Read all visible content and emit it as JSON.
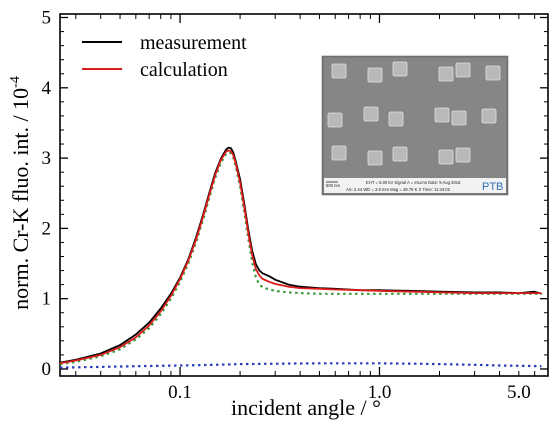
{
  "chart_data": {
    "type": "line",
    "title": "",
    "xlabel": "incident angle / °",
    "ylabel_main": "norm. Cr-K fluo. int. / 10",
    "ylabel_exp": "-4",
    "xscale": "log",
    "xlim": [
      0.025,
      7.0
    ],
    "ylim": [
      -0.1,
      5.05
    ],
    "xticks": [
      {
        "value": 0.1,
        "label": "0.1"
      },
      {
        "value": 1.0,
        "label": "1.0"
      },
      {
        "value": 5.0,
        "label": "5.0"
      }
    ],
    "yticks": [
      {
        "value": 0,
        "label": "0"
      },
      {
        "value": 1,
        "label": "1"
      },
      {
        "value": 2,
        "label": "2"
      },
      {
        "value": 3,
        "label": "3"
      },
      {
        "value": 4,
        "label": "4"
      },
      {
        "value": 5,
        "label": "5"
      }
    ],
    "legend_position": "top-left",
    "grid": false,
    "series": [
      {
        "name": "measurement",
        "color": "#000000",
        "style": "solid",
        "x": [
          0.025,
          0.03,
          0.04,
          0.05,
          0.06,
          0.07,
          0.08,
          0.09,
          0.1,
          0.11,
          0.12,
          0.13,
          0.14,
          0.15,
          0.16,
          0.17,
          0.175,
          0.18,
          0.185,
          0.19,
          0.2,
          0.21,
          0.22,
          0.23,
          0.24,
          0.25,
          0.26,
          0.28,
          0.3,
          0.35,
          0.4,
          0.5,
          0.6,
          0.8,
          1.0,
          1.5,
          2.0,
          3.0,
          4.0,
          5.0,
          6.0,
          6.5
        ],
        "y": [
          0.09,
          0.13,
          0.22,
          0.34,
          0.49,
          0.66,
          0.86,
          1.07,
          1.3,
          1.56,
          1.86,
          2.18,
          2.5,
          2.79,
          2.99,
          3.12,
          3.15,
          3.14,
          3.08,
          2.96,
          2.7,
          2.35,
          1.98,
          1.68,
          1.49,
          1.4,
          1.36,
          1.32,
          1.27,
          1.2,
          1.17,
          1.15,
          1.14,
          1.12,
          1.12,
          1.11,
          1.1,
          1.09,
          1.09,
          1.08,
          1.1,
          1.07
        ]
      },
      {
        "name": "calculation",
        "color": "#dd1c1c",
        "style": "solid",
        "x": [
          0.025,
          0.03,
          0.04,
          0.05,
          0.06,
          0.07,
          0.08,
          0.09,
          0.1,
          0.11,
          0.12,
          0.13,
          0.14,
          0.15,
          0.16,
          0.17,
          0.175,
          0.18,
          0.185,
          0.19,
          0.2,
          0.21,
          0.22,
          0.23,
          0.24,
          0.25,
          0.26,
          0.28,
          0.3,
          0.35,
          0.4,
          0.5,
          0.6,
          0.8,
          1.0,
          1.5,
          2.0,
          3.0,
          4.0,
          5.0,
          6.0,
          6.5
        ],
        "y": [
          0.08,
          0.12,
          0.2,
          0.31,
          0.45,
          0.62,
          0.82,
          1.04,
          1.28,
          1.54,
          1.83,
          2.15,
          2.47,
          2.76,
          2.97,
          3.09,
          3.11,
          3.1,
          3.04,
          2.93,
          2.65,
          2.3,
          1.93,
          1.62,
          1.42,
          1.33,
          1.28,
          1.24,
          1.21,
          1.17,
          1.15,
          1.14,
          1.13,
          1.12,
          1.11,
          1.1,
          1.09,
          1.08,
          1.08,
          1.08,
          1.08,
          1.08
        ]
      },
      {
        "name": "",
        "color": "#3a9a3a",
        "style": "dotted",
        "x": [
          0.025,
          0.03,
          0.04,
          0.05,
          0.06,
          0.07,
          0.08,
          0.09,
          0.1,
          0.11,
          0.12,
          0.13,
          0.14,
          0.15,
          0.16,
          0.17,
          0.175,
          0.18,
          0.185,
          0.19,
          0.2,
          0.21,
          0.22,
          0.23,
          0.24,
          0.25,
          0.26,
          0.28,
          0.3,
          0.35,
          0.4,
          0.5,
          0.6,
          0.8,
          1.0,
          1.5,
          2.0,
          3.0,
          4.0,
          5.0,
          6.0,
          6.5
        ],
        "y": [
          0.07,
          0.1,
          0.18,
          0.28,
          0.42,
          0.58,
          0.78,
          1.0,
          1.24,
          1.5,
          1.79,
          2.11,
          2.43,
          2.72,
          2.93,
          3.06,
          3.08,
          3.07,
          3.01,
          2.89,
          2.6,
          2.23,
          1.85,
          1.52,
          1.3,
          1.2,
          1.16,
          1.13,
          1.11,
          1.09,
          1.08,
          1.07,
          1.07,
          1.07,
          1.07,
          1.07,
          1.07,
          1.07,
          1.07,
          1.07,
          1.07,
          1.07
        ]
      },
      {
        "name": "",
        "color": "#2a3fb8",
        "style": "dotted",
        "x": [
          0.025,
          0.04,
          0.06,
          0.1,
          0.15,
          0.2,
          0.3,
          0.5,
          0.8,
          1.0,
          1.5,
          2.0,
          3.0,
          4.0,
          5.0,
          6.5
        ],
        "y": [
          0.02,
          0.03,
          0.04,
          0.05,
          0.06,
          0.07,
          0.075,
          0.08,
          0.08,
          0.08,
          0.075,
          0.07,
          0.06,
          0.05,
          0.045,
          0.04
        ]
      }
    ]
  },
  "inset": {
    "scale_bar_text": "500 nm",
    "info_line1": "EHT = 5.00 kV   Signal A = InLens   Date: 9 Aug 2016",
    "info_line2": "AS: 2.44   WD = 3.9 mm   Mag = 48.79 K X   Time: 11:34:02",
    "logo_text": "PTB",
    "pads": [
      {
        "row": 0,
        "col": 0
      },
      {
        "row": 0,
        "col": 1
      },
      {
        "row": 0,
        "col": 2
      },
      {
        "row": 0,
        "col": 3
      },
      {
        "row": 0,
        "col": 4
      },
      {
        "row": 0,
        "col": 5
      },
      {
        "row": 1,
        "col": 0
      },
      {
        "row": 1,
        "col": 1
      },
      {
        "row": 1,
        "col": 2
      },
      {
        "row": 1,
        "col": 3
      },
      {
        "row": 1,
        "col": 4
      },
      {
        "row": 1,
        "col": 5
      },
      {
        "row": 2,
        "col": 0
      },
      {
        "row": 2,
        "col": 1
      },
      {
        "row": 2,
        "col": 2
      },
      {
        "row": 2,
        "col": 3
      },
      {
        "row": 2,
        "col": 4
      }
    ]
  }
}
